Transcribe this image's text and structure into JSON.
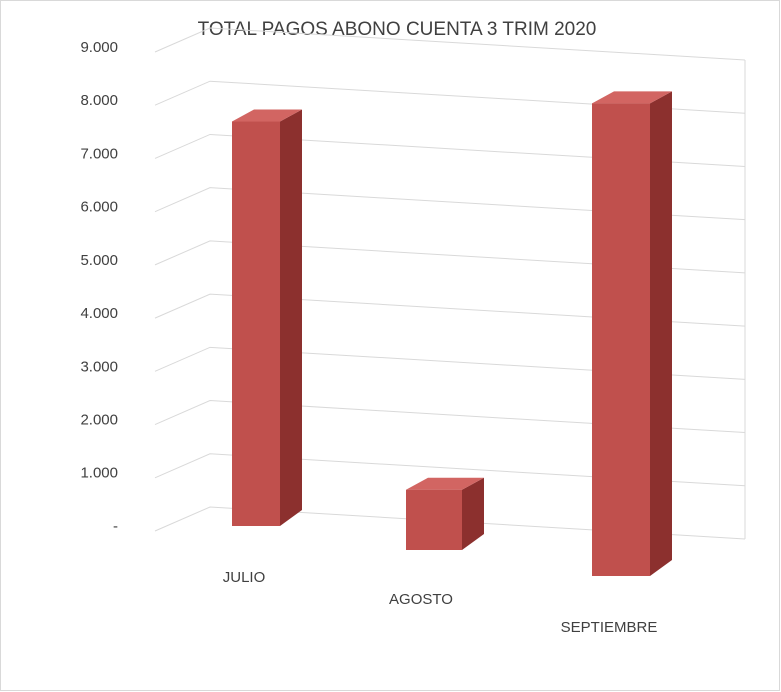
{
  "chart_data": {
    "type": "bar3d",
    "title": "TOTAL PAGOS ABONO CUENTA 3 TRIM 2020",
    "categories": [
      "JULIO",
      "AGOSTO",
      "SEPTIEMBRE"
    ],
    "values": [
      7600,
      1100,
      8300
    ],
    "color": "#c0504d",
    "ylim": [
      0,
      9000
    ],
    "yticks": [
      {
        "value": 0,
        "label": "-"
      },
      {
        "value": 1000,
        "label": "1.000"
      },
      {
        "value": 2000,
        "label": "2.000"
      },
      {
        "value": 3000,
        "label": "3.000"
      },
      {
        "value": 4000,
        "label": "4.000"
      },
      {
        "value": 5000,
        "label": "5.000"
      },
      {
        "value": 6000,
        "label": "6.000"
      },
      {
        "value": 7000,
        "label": "7.000"
      },
      {
        "value": 8000,
        "label": "8.000"
      },
      {
        "value": 9000,
        "label": "9.000"
      }
    ],
    "grid": true
  }
}
